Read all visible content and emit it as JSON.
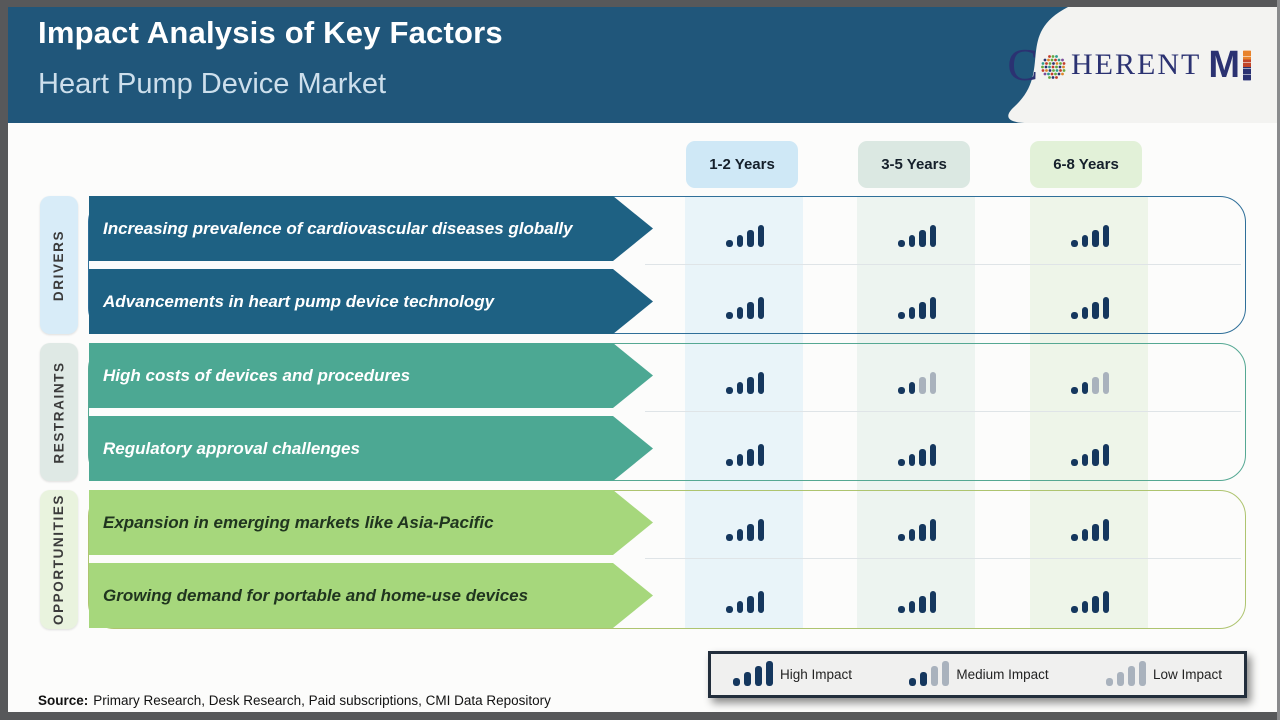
{
  "header": {
    "title": "Impact Analysis of Key Factors",
    "subtitle": "Heart Pump Device Market",
    "bg_color": "#20567a",
    "logo": {
      "c": "C",
      "herent": "HERENT",
      "m": "M",
      "navy": "#2b3272",
      "orange": "#e8832c",
      "icon": "dotted-globe-icon"
    }
  },
  "columns": [
    {
      "label": "1-2 Years",
      "chip_color": "#cfe8f6",
      "band_color": "#e9f4f9"
    },
    {
      "label": "3-5 Years",
      "chip_color": "#dbe8e2",
      "band_color": "#edf4f0"
    },
    {
      "label": "6-8 Years",
      "chip_color": "#e2f1d8",
      "band_color": "#eef5e9"
    }
  ],
  "groups": [
    {
      "label": "DRIVERS",
      "arrow_color": "#1e6183",
      "text_color": "#ffffff",
      "label_bg": "#d8ecf8",
      "border_color": "#2f6f99",
      "rows": [
        {
          "text": "Increasing prevalence of cardiovascular diseases globally",
          "impacts": [
            "high",
            "high",
            "high"
          ]
        },
        {
          "text": "Advancements in heart pump device technology",
          "impacts": [
            "high",
            "high",
            "high"
          ]
        }
      ]
    },
    {
      "label": "RESTRAINTS",
      "arrow_color": "#4ca893",
      "text_color": "#ffffff",
      "label_bg": "#dfe9e5",
      "border_color": "#55a893",
      "rows": [
        {
          "text": "High costs of devices and procedures",
          "impacts": [
            "high",
            "medium",
            "medium"
          ]
        },
        {
          "text": "Regulatory approval challenges",
          "impacts": [
            "high",
            "high",
            "high"
          ]
        }
      ]
    },
    {
      "label": "OPPORTUNITIES",
      "arrow_color": "#a6d77c",
      "text_color": "#20351f",
      "label_bg": "#e9f3de",
      "border_color": "#aec46f",
      "rows": [
        {
          "text": "Expansion in emerging markets like Asia-Pacific",
          "impacts": [
            "high",
            "high",
            "high"
          ]
        },
        {
          "text": "Growing demand for portable and home-use devices",
          "impacts": [
            "high",
            "high",
            "high"
          ]
        }
      ]
    }
  ],
  "legend": {
    "items": [
      {
        "level": "high",
        "label": "High Impact"
      },
      {
        "level": "medium",
        "label": "Medium Impact"
      },
      {
        "level": "low",
        "label": "Low Impact"
      }
    ]
  },
  "impact_colors": {
    "dark": "#15375e",
    "gray": "#a9b2bd"
  },
  "source": {
    "prefix": "Source:",
    "text": "Primary Research, Desk Research, Paid subscriptions, CMI Data Repository"
  }
}
